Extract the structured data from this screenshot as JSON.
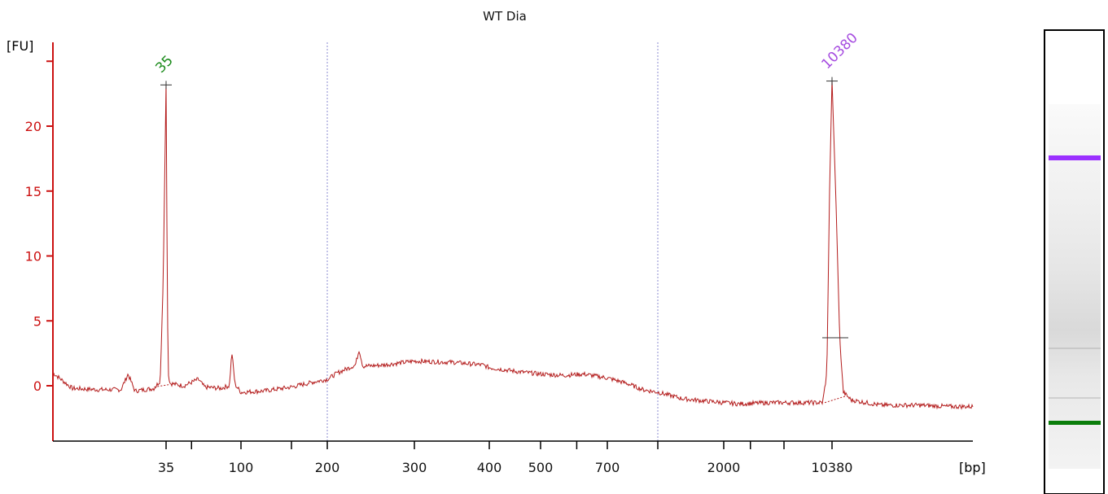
{
  "colors": {
    "axis": "#cc1111",
    "trace": "#b31b1b",
    "marker_dotted": "#8b8bd0",
    "peak_35": "#1a8a1a",
    "peak_10380": "#a64ce0",
    "gel_band_upper": "#9b30ff",
    "gel_band_lower": "#0a7d0a"
  },
  "chart_data": {
    "type": "line",
    "title": "WT Dia",
    "ylabel": "[FU]",
    "xlabel": "[bp]",
    "ylim": [
      -4.5,
      26
    ],
    "y_ticks": [
      0,
      5,
      10,
      15,
      20
    ],
    "x_ticks": [
      "35",
      "100",
      "200",
      "300",
      "400",
      "500",
      "700",
      "2000",
      "10380"
    ],
    "x_axis_scale": "nonlinear (electropherogram migration)",
    "x_tick_positions_bp": [
      35,
      100,
      200,
      300,
      400,
      500,
      700,
      2000,
      10380
    ],
    "reference_lines_bp": [
      200,
      1000
    ],
    "peaks": [
      {
        "label": "35",
        "x_bp": 35,
        "height_fu": 23.3
      },
      {
        "label": "10380",
        "x_bp": 10380,
        "height_fu": 23.6
      }
    ],
    "series": [
      {
        "points": [
          [
            20,
            1.0
          ],
          [
            22,
            -0.2
          ],
          [
            25,
            -0.3
          ],
          [
            28,
            -0.3
          ],
          [
            29,
            0.9
          ],
          [
            30,
            -0.4
          ],
          [
            33,
            -0.2
          ],
          [
            34,
            0.4
          ],
          [
            34.5,
            8.0
          ],
          [
            35,
            23.3
          ],
          [
            35.5,
            10.0
          ],
          [
            36,
            1.0
          ],
          [
            37,
            0.2
          ],
          [
            40,
            0.1
          ],
          [
            45,
            0.0
          ],
          [
            55,
            0.5
          ],
          [
            60,
            -0.1
          ],
          [
            75,
            -0.2
          ],
          [
            85,
            0.0
          ],
          [
            88,
            2.6
          ],
          [
            92,
            0.1
          ],
          [
            100,
            -0.5
          ],
          [
            120,
            -0.4
          ],
          [
            150,
            -0.1
          ],
          [
            180,
            0.3
          ],
          [
            200,
            0.5
          ],
          [
            210,
            1.0
          ],
          [
            228,
            1.6
          ],
          [
            232,
            2.8
          ],
          [
            236,
            1.5
          ],
          [
            260,
            1.6
          ],
          [
            300,
            1.9
          ],
          [
            350,
            1.8
          ],
          [
            390,
            1.6
          ],
          [
            400,
            1.4
          ],
          [
            450,
            1.1
          ],
          [
            500,
            0.9
          ],
          [
            560,
            0.8
          ],
          [
            620,
            0.9
          ],
          [
            700,
            0.6
          ],
          [
            800,
            0.2
          ],
          [
            900,
            -0.3
          ],
          [
            1000,
            -0.5
          ],
          [
            1300,
            -1.0
          ],
          [
            1700,
            -1.2
          ],
          [
            2000,
            -1.3
          ],
          [
            2500,
            -1.4
          ],
          [
            4000,
            -1.3
          ],
          [
            7000,
            -1.3
          ],
          [
            9000,
            -1.3
          ],
          [
            9600,
            1.0
          ],
          [
            10000,
            15.0
          ],
          [
            10380,
            23.6
          ],
          [
            10700,
            14.0
          ],
          [
            11000,
            3.7
          ],
          [
            11300,
            -0.5
          ],
          [
            12000,
            -1.1
          ],
          [
            15000,
            -1.5
          ],
          [
            20000,
            -1.5
          ],
          [
            25000,
            -1.6
          ],
          [
            30000,
            -1.6
          ]
        ]
      }
    ]
  }
}
